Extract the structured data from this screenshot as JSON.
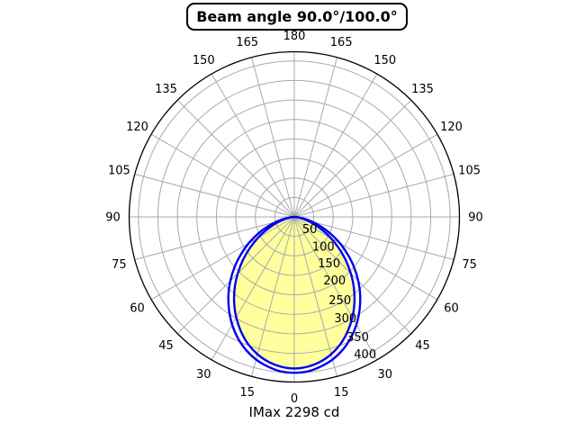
{
  "chart_data": {
    "type": "polar",
    "title": "Beam angle 90.0°/100.0°",
    "annotation": "IMax 2298 cd",
    "imax_cd": 2298,
    "beam_angles_deg": [
      90.0,
      100.0
    ],
    "angle_tick_labels": [
      "0",
      "15",
      "30",
      "45",
      "60",
      "75",
      "90",
      "105",
      "120",
      "135",
      "150",
      "165",
      "180"
    ],
    "angle_step_deg": 15,
    "radial_tick_labels": [
      "50",
      "100",
      "150",
      "200",
      "250",
      "300",
      "350",
      "400"
    ],
    "radial_step": 50,
    "r_grid_max": 400,
    "r_axis_max": 424,
    "grid": true,
    "symmetric_mirror": true,
    "colors": {
      "fill": "#FFFF9E",
      "curve": "#0000EE",
      "grid": "#A9A9A9",
      "axis": "#000000",
      "text": "#000000",
      "background": "#FFFFFF"
    },
    "series": [
      {
        "name": "beam-plane-100deg",
        "beam_angle_deg": 100.0,
        "filled": false,
        "angles_deg": [
          0,
          5,
          10,
          15,
          20,
          25,
          30,
          35,
          40,
          45,
          50,
          55,
          60,
          65,
          70,
          75,
          80,
          85,
          90
        ],
        "values": [
          400,
          398,
          390,
          379,
          363,
          343,
          319,
          292,
          263,
          232,
          200,
          167,
          135,
          103,
          74,
          48,
          26,
          9,
          0
        ]
      },
      {
        "name": "beam-plane-90deg",
        "beam_angle_deg": 90.0,
        "filled": true,
        "angles_deg": [
          0,
          5,
          10,
          15,
          20,
          25,
          30,
          35,
          40,
          45,
          50,
          55,
          60,
          65,
          70,
          75,
          80,
          85,
          90
        ],
        "values": [
          389,
          386,
          378,
          365,
          347,
          324,
          298,
          269,
          238,
          205,
          172,
          139,
          108,
          79,
          53,
          32,
          15,
          4,
          0
        ]
      }
    ]
  }
}
